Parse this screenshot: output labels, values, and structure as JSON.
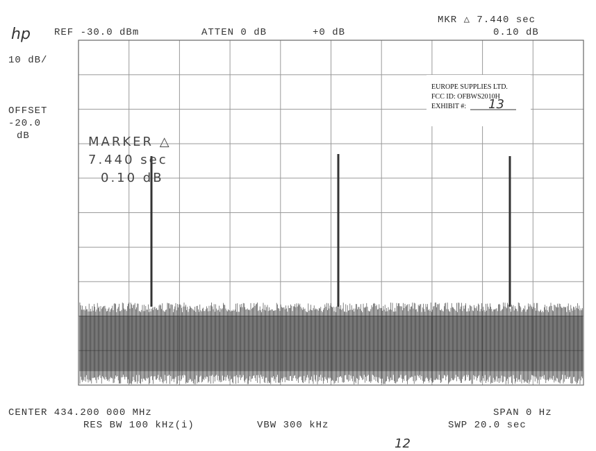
{
  "header": {
    "logo": "hp",
    "ref": "REF -30.0 dBm",
    "atten": "ATTEN 0 dB",
    "offset_db": "+0 dB",
    "marker_readout": "MKR △ 7.440  sec",
    "marker_level": "0.10 dB"
  },
  "left_labels": {
    "scale": "10 dB/",
    "offset": "OFFSET",
    "offset_value": "-20.0",
    "offset_unit": "dB"
  },
  "marker_box": {
    "title": "MARKER △",
    "time": "7.440  sec",
    "level": "0.10 dB"
  },
  "stamp": {
    "company": "EUROPE SUPPLIES LTD.",
    "fcc_id": "FCC ID:  OFBWS2010H",
    "exhibit_label": "EXHIBIT #:",
    "exhibit_number": "13"
  },
  "footer": {
    "center": "CENTER 434.200 000 MHz",
    "span": "SPAN 0  Hz",
    "res_bw": "RES BW 100 kHz(i)",
    "vbw": "VBW 300 kHz",
    "sweep": "SWP 20.0  sec"
  },
  "page_number": "12"
}
